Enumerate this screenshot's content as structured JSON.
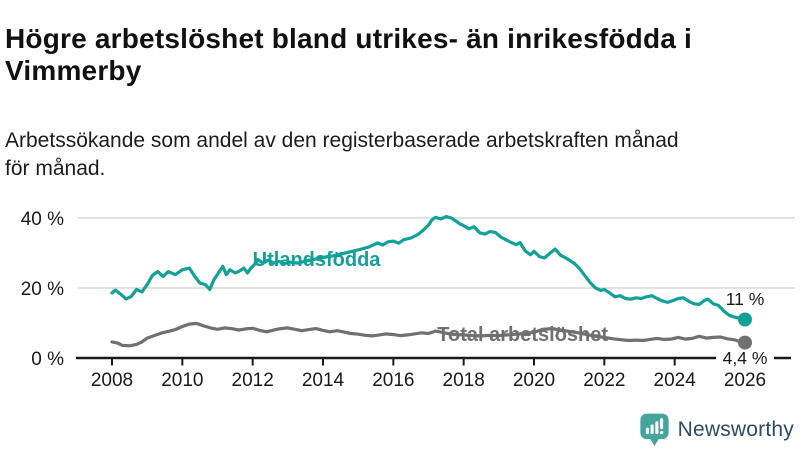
{
  "header": {
    "title": "Högre arbetslöshet bland utrikes- än inrikesfödda i Vimmerby",
    "subtitle": "Arbetssökande som andel av den registerbaserade arbetskraften månad för månad."
  },
  "colors": {
    "accent_teal": "#12a199",
    "series_gray": "#707070",
    "text_dark": "#1a1a1a",
    "grid": "#d9d9d9",
    "axis": "#1a1a1a",
    "logo_teal": "#45a49b",
    "logo_navy": "#2d4a66",
    "background": "#ffffff"
  },
  "branding": {
    "name": "Newsworthy",
    "icon": "newsworthy-chart-bubble-icon"
  },
  "chart_data": {
    "type": "line",
    "title": "",
    "xlabel": "",
    "ylabel": "",
    "x_unit": "year_decimal_monthly",
    "xlim": [
      2008,
      2026
    ],
    "ylim": [
      0,
      40
    ],
    "yticks": [
      0,
      20,
      40
    ],
    "ytick_labels": [
      "0 %",
      "20 %",
      "40 %"
    ],
    "xticks": [
      2008,
      2010,
      2012,
      2014,
      2016,
      2018,
      2020,
      2022,
      2024,
      2026
    ],
    "grid": "horizontal",
    "legend_position": "inline-labels",
    "series": [
      {
        "name": "Total arbetslöshet",
        "color_key": "series_gray",
        "end_value": 4.4,
        "end_label": "4,4 %",
        "points": [
          [
            2008,
            4.6
          ],
          [
            2008.15,
            4.3
          ],
          [
            2008.3,
            3.6
          ],
          [
            2008.5,
            3.5
          ],
          [
            2008.7,
            3.9
          ],
          [
            2008.85,
            4.6
          ],
          [
            2009,
            5.7
          ],
          [
            2009.2,
            6.4
          ],
          [
            2009.4,
            7.1
          ],
          [
            2009.6,
            7.6
          ],
          [
            2009.8,
            8.1
          ],
          [
            2010,
            9
          ],
          [
            2010.2,
            9.7
          ],
          [
            2010.4,
            9.9
          ],
          [
            2010.6,
            9.2
          ],
          [
            2010.8,
            8.6
          ],
          [
            2011,
            8.2
          ],
          [
            2011.2,
            8.6
          ],
          [
            2011.4,
            8.4
          ],
          [
            2011.6,
            8
          ],
          [
            2011.8,
            8.3
          ],
          [
            2012,
            8.5
          ],
          [
            2012.2,
            7.9
          ],
          [
            2012.4,
            7.5
          ],
          [
            2012.6,
            8
          ],
          [
            2012.8,
            8.4
          ],
          [
            2013,
            8.6
          ],
          [
            2013.2,
            8.2
          ],
          [
            2013.4,
            7.8
          ],
          [
            2013.6,
            8.1
          ],
          [
            2013.8,
            8.4
          ],
          [
            2014,
            7.9
          ],
          [
            2014.2,
            7.5
          ],
          [
            2014.4,
            7.8
          ],
          [
            2014.6,
            7.4
          ],
          [
            2014.8,
            7
          ],
          [
            2015,
            6.8
          ],
          [
            2015.2,
            6.5
          ],
          [
            2015.4,
            6.3
          ],
          [
            2015.6,
            6.6
          ],
          [
            2015.8,
            6.9
          ],
          [
            2016,
            6.7
          ],
          [
            2016.2,
            6.4
          ],
          [
            2016.4,
            6.6
          ],
          [
            2016.6,
            6.9
          ],
          [
            2016.8,
            7.2
          ],
          [
            2017,
            7
          ],
          [
            2017.2,
            7.7
          ],
          [
            2017.4,
            7.3
          ],
          [
            2017.6,
            6.9
          ],
          [
            2017.8,
            6.7
          ],
          [
            2018,
            6.6
          ],
          [
            2018.25,
            6.4
          ],
          [
            2018.5,
            6.3
          ],
          [
            2018.75,
            6.5
          ],
          [
            2019,
            6.4
          ],
          [
            2019.25,
            6.6
          ],
          [
            2019.5,
            6.8
          ],
          [
            2019.75,
            7
          ],
          [
            2020,
            7.3
          ],
          [
            2020.25,
            8.2
          ],
          [
            2020.5,
            8.4
          ],
          [
            2020.75,
            8
          ],
          [
            2021,
            7.6
          ],
          [
            2021.25,
            7.2
          ],
          [
            2021.5,
            6.7
          ],
          [
            2021.75,
            6.2
          ],
          [
            2022,
            5.9
          ],
          [
            2022.25,
            5.5
          ],
          [
            2022.5,
            5.2
          ],
          [
            2022.7,
            5
          ],
          [
            2022.9,
            5.1
          ],
          [
            2023.1,
            5
          ],
          [
            2023.3,
            5.3
          ],
          [
            2023.5,
            5.6
          ],
          [
            2023.7,
            5.3
          ],
          [
            2023.9,
            5.4
          ],
          [
            2024.1,
            5.9
          ],
          [
            2024.3,
            5.4
          ],
          [
            2024.5,
            5.6
          ],
          [
            2024.7,
            6.2
          ],
          [
            2024.9,
            5.7
          ],
          [
            2025.1,
            5.9
          ],
          [
            2025.3,
            6
          ],
          [
            2025.5,
            5.5
          ],
          [
            2025.7,
            5.2
          ],
          [
            2025.85,
            4.7
          ],
          [
            2026,
            4.4
          ]
        ]
      },
      {
        "name": "Utlandsfödda",
        "color_key": "accent_teal",
        "end_value": 11,
        "end_label": "11 %",
        "points": [
          [
            2008,
            18.6
          ],
          [
            2008.1,
            19.4
          ],
          [
            2008.25,
            18.2
          ],
          [
            2008.4,
            16.9
          ],
          [
            2008.55,
            17.6
          ],
          [
            2008.7,
            19.6
          ],
          [
            2008.85,
            18.9
          ],
          [
            2009,
            21
          ],
          [
            2009.15,
            23.6
          ],
          [
            2009.3,
            24.7
          ],
          [
            2009.45,
            23.3
          ],
          [
            2009.6,
            24.7
          ],
          [
            2009.8,
            23.8
          ],
          [
            2010,
            25.2
          ],
          [
            2010.2,
            25.7
          ],
          [
            2010.35,
            23.4
          ],
          [
            2010.5,
            21.4
          ],
          [
            2010.65,
            21
          ],
          [
            2010.78,
            19.6
          ],
          [
            2010.9,
            22.4
          ],
          [
            2011.05,
            24.7
          ],
          [
            2011.15,
            26.2
          ],
          [
            2011.25,
            23.8
          ],
          [
            2011.35,
            25.2
          ],
          [
            2011.5,
            24.3
          ],
          [
            2011.6,
            24.7
          ],
          [
            2011.75,
            25.7
          ],
          [
            2011.85,
            24.3
          ],
          [
            2011.95,
            25.7
          ],
          [
            2012.05,
            26.7
          ],
          [
            2012.15,
            28.1
          ],
          [
            2012.3,
            27.1
          ],
          [
            2012.45,
            28
          ],
          [
            2012.6,
            27.1
          ],
          [
            2012.75,
            27.6
          ],
          [
            2012.9,
            27
          ],
          [
            2013.05,
            27.4
          ],
          [
            2013.3,
            27.1
          ],
          [
            2013.55,
            27.8
          ],
          [
            2013.8,
            28.3
          ],
          [
            2014.05,
            28.8
          ],
          [
            2014.3,
            29.2
          ],
          [
            2014.55,
            29.8
          ],
          [
            2014.8,
            30.4
          ],
          [
            2015.05,
            31
          ],
          [
            2015.3,
            31.7
          ],
          [
            2015.55,
            32.9
          ],
          [
            2015.7,
            32.3
          ],
          [
            2015.85,
            33.2
          ],
          [
            2016,
            33.4
          ],
          [
            2016.15,
            32.8
          ],
          [
            2016.3,
            33.8
          ],
          [
            2016.5,
            34.3
          ],
          [
            2016.7,
            35.3
          ],
          [
            2016.85,
            36.5
          ],
          [
            2017,
            38
          ],
          [
            2017.1,
            39.5
          ],
          [
            2017.2,
            40.2
          ],
          [
            2017.35,
            39.7
          ],
          [
            2017.5,
            40.4
          ],
          [
            2017.65,
            40
          ],
          [
            2017.8,
            39
          ],
          [
            2017.9,
            38.3
          ],
          [
            2018,
            37.8
          ],
          [
            2018.15,
            36.9
          ],
          [
            2018.3,
            37.5
          ],
          [
            2018.45,
            35.8
          ],
          [
            2018.6,
            35.4
          ],
          [
            2018.75,
            36.1
          ],
          [
            2018.9,
            35.9
          ],
          [
            2019.05,
            34.6
          ],
          [
            2019.2,
            33.8
          ],
          [
            2019.35,
            33
          ],
          [
            2019.5,
            32.4
          ],
          [
            2019.6,
            33
          ],
          [
            2019.75,
            30.6
          ],
          [
            2019.9,
            29.5
          ],
          [
            2020,
            30.5
          ],
          [
            2020.15,
            29
          ],
          [
            2020.3,
            28.6
          ],
          [
            2020.45,
            29.9
          ],
          [
            2020.6,
            31.1
          ],
          [
            2020.75,
            29.4
          ],
          [
            2020.9,
            28.6
          ],
          [
            2021,
            28
          ],
          [
            2021.15,
            27
          ],
          [
            2021.3,
            25.5
          ],
          [
            2021.45,
            23.5
          ],
          [
            2021.6,
            21.5
          ],
          [
            2021.75,
            20
          ],
          [
            2021.9,
            19.3
          ],
          [
            2022,
            19.6
          ],
          [
            2022.15,
            18.6
          ],
          [
            2022.3,
            17.5
          ],
          [
            2022.45,
            17.8
          ],
          [
            2022.6,
            17
          ],
          [
            2022.75,
            16.8
          ],
          [
            2022.9,
            17.2
          ],
          [
            2023.05,
            17
          ],
          [
            2023.2,
            17.5
          ],
          [
            2023.35,
            17.8
          ],
          [
            2023.5,
            17
          ],
          [
            2023.65,
            16.3
          ],
          [
            2023.8,
            15.9
          ],
          [
            2023.95,
            16.4
          ],
          [
            2024.1,
            17
          ],
          [
            2024.25,
            17.2
          ],
          [
            2024.4,
            16.2
          ],
          [
            2024.55,
            15.5
          ],
          [
            2024.7,
            15.3
          ],
          [
            2024.85,
            16.5
          ],
          [
            2024.95,
            16.8
          ],
          [
            2025.1,
            15.5
          ],
          [
            2025.25,
            15
          ],
          [
            2025.4,
            13.4
          ],
          [
            2025.55,
            12.2
          ],
          [
            2025.7,
            11.7
          ],
          [
            2025.85,
            11.3
          ],
          [
            2026,
            11
          ]
        ]
      }
    ],
    "annotations": [
      {
        "text": "Utlandsfödda",
        "x": 2012.0,
        "y": 26.3,
        "anchor": "start",
        "color_key": "accent_teal",
        "bold": true,
        "bg": false
      },
      {
        "text": "Total arbetslöshet",
        "x": 2017.25,
        "y": 4.9,
        "anchor": "start",
        "color_key": "series_gray",
        "bold": true,
        "bg": false
      },
      {
        "text": "11 %",
        "x": 2026,
        "y": 15.2,
        "anchor": "middle",
        "color_key": "text_dark",
        "bold": false,
        "bg": false
      },
      {
        "text": "4,4 %",
        "x": 2026,
        "y": -1.7,
        "anchor": "middle",
        "color_key": "text_dark",
        "bold": false,
        "bg": true
      }
    ]
  }
}
